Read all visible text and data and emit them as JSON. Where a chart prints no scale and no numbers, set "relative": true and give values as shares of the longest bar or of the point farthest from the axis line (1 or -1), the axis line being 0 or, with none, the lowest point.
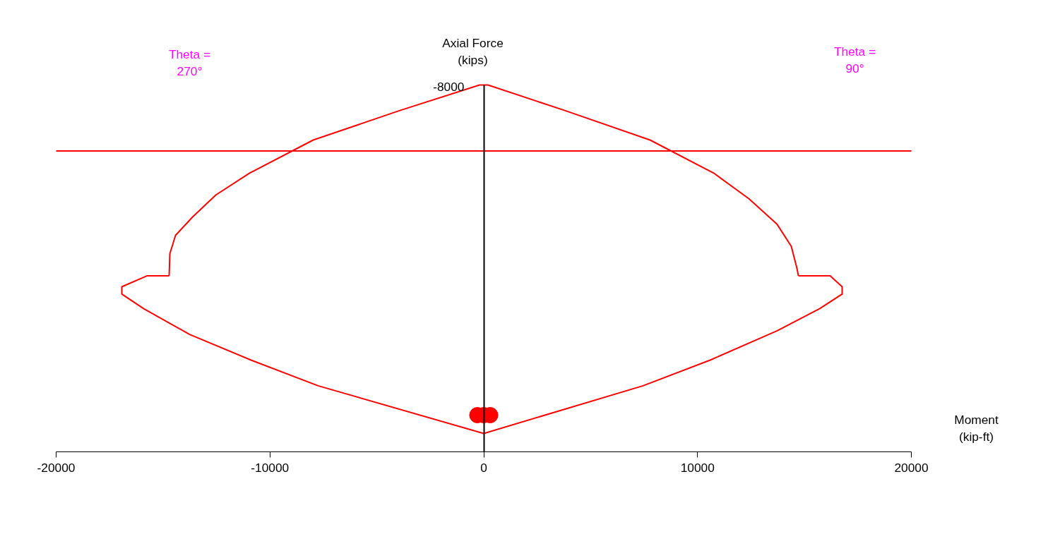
{
  "chart_data": {
    "type": "line",
    "relative": true,
    "xlabel": "Moment\n(kip-ft)",
    "ylabel": "Axial Force\n(kips)",
    "xlim": [
      -20000,
      20000
    ],
    "xticks": [
      -20000,
      -10000,
      0,
      10000,
      20000
    ],
    "series": [
      {
        "type": "line",
        "color": "#ff0000",
        "marker": "none",
        "line_style": "solid",
        "x": [
          -14715,
          -14682,
          -14418,
          -13625,
          -12535,
          -10950,
          -7977,
          -3947,
          -200,
          0,
          200,
          3815,
          7779,
          10752,
          12403,
          13724,
          14385,
          14650,
          14716
        ],
        "values": [
          0.48,
          0.54,
          0.59,
          0.64,
          0.7,
          0.76,
          0.85,
          0.93,
          1.0,
          1.0,
          1.0,
          0.93,
          0.85,
          0.76,
          0.69,
          0.62,
          0.56,
          0.5,
          0.48
        ]
      },
      {
        "type": "line",
        "color": "#ff0000",
        "marker": "none",
        "line_style": "solid",
        "x": [
          -14715,
          -15739,
          -16928,
          -16928,
          -15904,
          -13757,
          -10884,
          -7746,
          0,
          7448,
          10586,
          13724,
          15706,
          16763,
          16763,
          16202,
          14716
        ],
        "values": [
          0.48,
          0.48,
          0.45,
          0.43,
          0.39,
          0.32,
          0.25,
          0.18,
          0.05,
          0.18,
          0.25,
          0.33,
          0.39,
          0.43,
          0.45,
          0.48,
          0.48
        ]
      },
      {
        "type": "scatter",
        "color": "#ff0000",
        "marker": "circle",
        "x": [
          -300,
          0,
          300
        ],
        "values": [
          0.1,
          0.1,
          0.1
        ]
      }
    ],
    "ref_lines": [
      {
        "axis": "y",
        "value": 0.82,
        "color": "#ff0000"
      }
    ],
    "annotations": [
      "-8000",
      "Theta = 270°",
      "Theta = 90°"
    ]
  }
}
